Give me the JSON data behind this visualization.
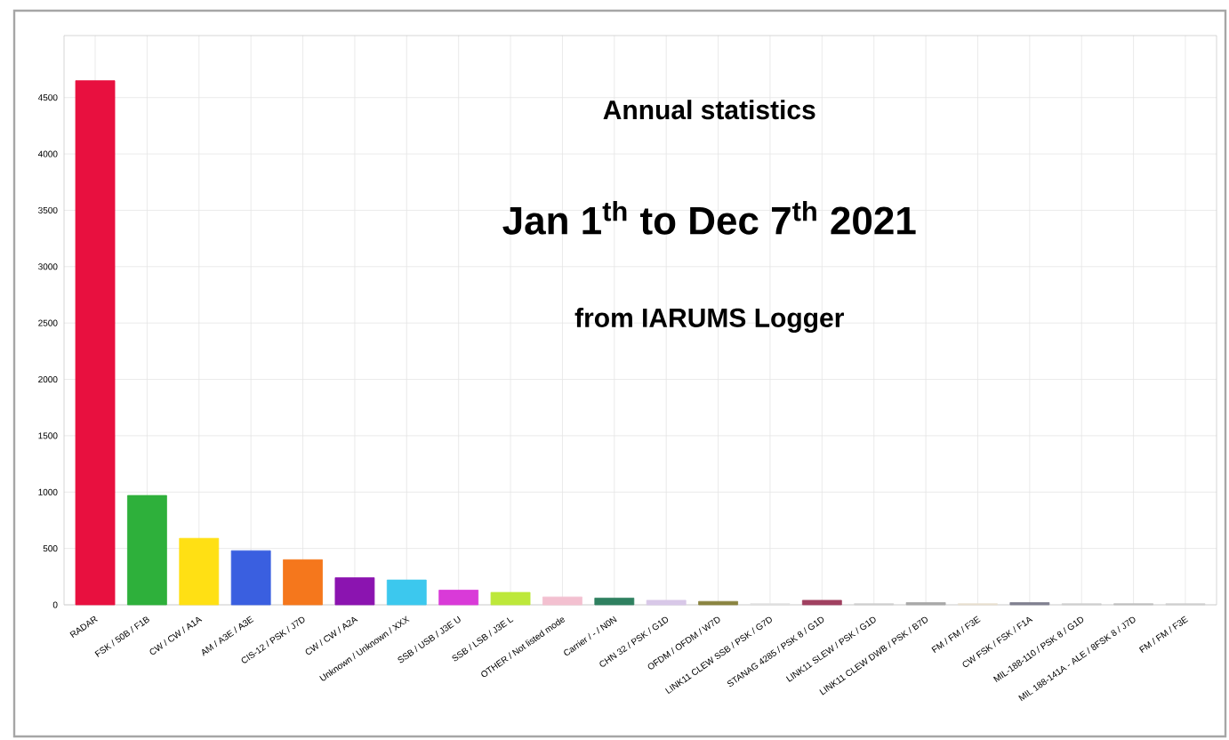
{
  "chart_data": {
    "type": "bar",
    "title": "Annual statistics",
    "subtitle": "Jan 1$^{th}$ to Dec 7$^{th}$ 2021",
    "annotations": [
      "from IARUMS Logger"
    ],
    "categories": [
      "RADAR",
      "FSK / 50B / F1B",
      "CW / CW / A1A",
      "AM / A3E / A3E",
      "CIS-12 / PSK / J7D",
      "CW / CW / A2A",
      "Unknown / Unknown / XXX",
      "SSB / USB / J3E U",
      "SSB / LSB / J3E L",
      "OTHER / Not listed mode",
      "Carrier / - / N0N",
      "CHN 32 / PSK / G1D",
      "OFDM / OFDM / W7D",
      "LINK11 CLEW SSB / PSK / G7D",
      "STANAG 4285 / PSK 8 / G1D",
      "LINK11 SLEW / PSK / G1D",
      "LINK11 CLEW DWB / PSK / B7D",
      "FM / FM / F3E",
      "CW FSK / FSK / F1A",
      "MIL-188-110 / PSK 8 / G1D",
      "MIL 188-141A - ALE / 8FSK 8 / J7D",
      "FM / FM / F3E"
    ],
    "values": [
      4650,
      970,
      590,
      480,
      400,
      240,
      220,
      130,
      110,
      70,
      60,
      40,
      30,
      10,
      40,
      10,
      20,
      10,
      20,
      10,
      10,
      10
    ],
    "colors": [
      "#e8103f",
      "#2eb03b",
      "#ffe014",
      "#3a5fe0",
      "#f5771c",
      "#8b14b0",
      "#3cc8ee",
      "#d93ad8",
      "#bde83a",
      "#f3c0d0",
      "#2f8060",
      "#d8c8e8",
      "#8a8440",
      "#e0e0e0",
      "#a04060",
      "#d0d0d0",
      "#a8a8a8",
      "#e8e0d0",
      "#808090",
      "#d0d0d0",
      "#c0c0c0",
      "#d0d0d0"
    ],
    "ylim": [
      0,
      5050
    ],
    "yticks": [
      0,
      500,
      1000,
      1500,
      2000,
      2500,
      3000,
      3500,
      4000,
      4500
    ],
    "grid": true
  }
}
